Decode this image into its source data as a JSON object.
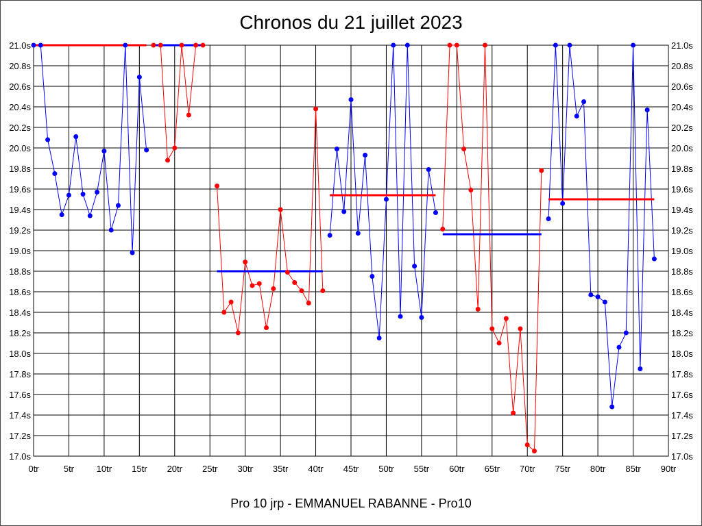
{
  "chart_data": {
    "type": "line",
    "title": "Chronos du 21 juillet 2023",
    "subtitle": "Pro 10 jrp - EMMANUEL RABANNE - Pro10",
    "x_unit": "tr",
    "y_unit": "s",
    "xlim": [
      0,
      90
    ],
    "ylim": [
      17.0,
      21.0
    ],
    "x_tick_step": 5,
    "y_tick_step": 0.2,
    "grid": true,
    "series": [
      {
        "color": "#0000ff",
        "laps": [
          0,
          1,
          2,
          3,
          4,
          5,
          6,
          7,
          8,
          9,
          10,
          11,
          12,
          13,
          14,
          15,
          16
        ],
        "values": [
          21.0,
          21.0,
          20.08,
          19.75,
          19.35,
          19.54,
          20.11,
          19.55,
          19.34,
          19.57,
          19.97,
          19.2,
          19.44,
          21.0,
          18.98,
          20.69,
          19.98
        ],
        "average": 21.0,
        "average_color": "#ff0000"
      },
      {
        "color": "#ff0000",
        "laps": [
          17,
          18,
          19,
          20,
          21,
          22,
          23,
          24
        ],
        "values": [
          21.0,
          21.0,
          19.88,
          20.0,
          21.0,
          20.32,
          21.0,
          21.0
        ],
        "average": 21.0,
        "average_color": "#0000ff"
      },
      {
        "color": "#ff0000",
        "laps": [
          26,
          27,
          28,
          29,
          30,
          31,
          32,
          33,
          34,
          35,
          36,
          37,
          38,
          39,
          40,
          41
        ],
        "values": [
          19.63,
          18.4,
          18.5,
          18.2,
          18.89,
          18.66,
          18.68,
          18.25,
          18.63,
          19.4,
          18.79,
          18.69,
          18.61,
          18.49,
          20.38,
          18.61
        ],
        "average": 18.8,
        "average_color": "#0000ff"
      },
      {
        "color": "#0000ff",
        "laps": [
          42,
          43,
          44,
          45,
          46,
          47,
          48,
          49,
          50,
          51,
          52,
          53,
          54,
          55,
          56,
          57
        ],
        "values": [
          19.15,
          19.99,
          19.38,
          20.47,
          19.17,
          19.93,
          18.75,
          18.15,
          19.5,
          21.0,
          18.36,
          21.0,
          18.85,
          18.35,
          19.79,
          19.37
        ],
        "average": 19.54,
        "average_color": "#ff0000"
      },
      {
        "color": "#ff0000",
        "laps": [
          58,
          59,
          60,
          61,
          62,
          63,
          64,
          65,
          66,
          67,
          68,
          69,
          70,
          71,
          72
        ],
        "values": [
          19.21,
          21.0,
          21.0,
          19.99,
          19.59,
          18.43,
          21.0,
          18.24,
          18.1,
          18.34,
          17.42,
          18.24,
          17.11,
          17.05,
          19.78
        ],
        "average": 19.16,
        "average_color": "#0000ff"
      },
      {
        "color": "#0000ff",
        "laps": [
          73,
          74,
          75,
          76,
          77,
          78,
          79,
          80,
          81,
          82,
          83,
          84,
          85,
          86,
          87,
          88
        ],
        "values": [
          19.31,
          21.0,
          19.46,
          21.0,
          20.31,
          20.45,
          18.57,
          18.55,
          18.5,
          17.48,
          18.06,
          18.2,
          21.0,
          17.85,
          20.37,
          18.92
        ],
        "average": 19.5,
        "average_color": "#ff0000"
      }
    ]
  }
}
